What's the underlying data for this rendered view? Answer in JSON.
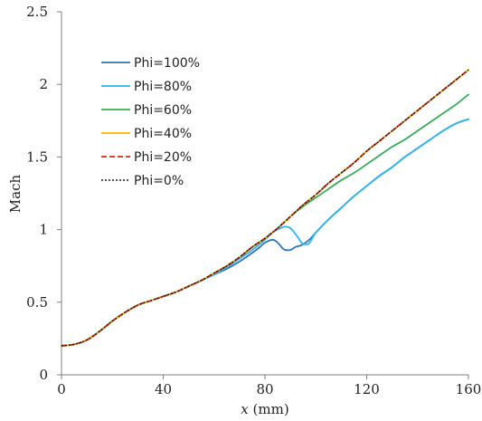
{
  "chart_data": {
    "type": "line",
    "title": "",
    "xlabel_italic": "x",
    "xlabel_unit": " (mm)",
    "ylabel": "Mach",
    "xlim": [
      0,
      160
    ],
    "ylim": [
      0,
      2.5
    ],
    "x_ticks": [
      "0",
      "40",
      "80",
      "120",
      "160"
    ],
    "y_ticks": [
      "0",
      "0.5",
      "1",
      "1.5",
      "2",
      "2.5"
    ],
    "grid": false,
    "legend_position": "top-left",
    "series": [
      {
        "name": "Phi=100%",
        "color": "#2e75b6",
        "dash": "solid",
        "x": [
          0,
          5,
          10,
          15,
          20,
          25,
          30,
          35,
          40,
          45,
          50,
          55,
          60,
          65,
          70,
          75,
          78,
          80,
          83,
          85,
          87,
          88,
          90,
          92,
          94,
          96,
          98,
          100,
          105,
          110,
          115,
          120,
          125,
          130,
          135,
          140,
          145,
          150,
          155,
          160
        ],
        "y": [
          0.2,
          0.21,
          0.24,
          0.3,
          0.37,
          0.43,
          0.48,
          0.51,
          0.54,
          0.57,
          0.61,
          0.65,
          0.69,
          0.73,
          0.78,
          0.84,
          0.88,
          0.91,
          0.93,
          0.91,
          0.87,
          0.86,
          0.86,
          0.88,
          0.89,
          0.91,
          0.94,
          0.98,
          1.07,
          1.15,
          1.23,
          1.3,
          1.37,
          1.43,
          1.5,
          1.56,
          1.62,
          1.68,
          1.73,
          1.76
        ]
      },
      {
        "name": "Phi=80%",
        "color": "#2cb5e8",
        "dash": "solid",
        "x": [
          0,
          5,
          10,
          15,
          20,
          25,
          30,
          35,
          40,
          45,
          50,
          55,
          60,
          65,
          70,
          75,
          80,
          83,
          86,
          88,
          90,
          92,
          94,
          95,
          96,
          97,
          98,
          100,
          105,
          110,
          115,
          120,
          125,
          130,
          135,
          140,
          145,
          150,
          155,
          160
        ],
        "y": [
          0.2,
          0.21,
          0.24,
          0.3,
          0.37,
          0.43,
          0.48,
          0.51,
          0.54,
          0.57,
          0.61,
          0.65,
          0.69,
          0.74,
          0.8,
          0.86,
          0.93,
          0.98,
          1.01,
          1.02,
          1.01,
          0.97,
          0.92,
          0.9,
          0.9,
          0.9,
          0.92,
          0.98,
          1.07,
          1.15,
          1.23,
          1.3,
          1.37,
          1.43,
          1.5,
          1.56,
          1.62,
          1.68,
          1.73,
          1.76
        ]
      },
      {
        "name": "Phi=60%",
        "color": "#3aaa5c",
        "dash": "solid",
        "x": [
          0,
          5,
          10,
          15,
          20,
          25,
          30,
          35,
          40,
          45,
          50,
          55,
          60,
          65,
          70,
          75,
          80,
          85,
          90,
          95,
          100,
          105,
          110,
          115,
          120,
          125,
          130,
          135,
          140,
          145,
          150,
          155,
          160
        ],
        "y": [
          0.2,
          0.21,
          0.24,
          0.3,
          0.37,
          0.43,
          0.48,
          0.51,
          0.54,
          0.57,
          0.61,
          0.65,
          0.7,
          0.75,
          0.81,
          0.88,
          0.94,
          1.01,
          1.09,
          1.16,
          1.22,
          1.28,
          1.34,
          1.39,
          1.45,
          1.51,
          1.57,
          1.62,
          1.68,
          1.74,
          1.8,
          1.86,
          1.93
        ]
      },
      {
        "name": "Phi=40%",
        "color": "#f5b800",
        "dash": "solid",
        "x": [
          0,
          5,
          10,
          15,
          20,
          25,
          30,
          35,
          40,
          45,
          50,
          55,
          60,
          65,
          70,
          75,
          80,
          85,
          90,
          95,
          100,
          105,
          110,
          115,
          120,
          125,
          130,
          135,
          140,
          145,
          150,
          155,
          160
        ],
        "y": [
          0.2,
          0.21,
          0.24,
          0.3,
          0.37,
          0.43,
          0.48,
          0.51,
          0.54,
          0.57,
          0.61,
          0.65,
          0.7,
          0.75,
          0.81,
          0.88,
          0.94,
          1.01,
          1.09,
          1.17,
          1.24,
          1.32,
          1.39,
          1.46,
          1.54,
          1.61,
          1.68,
          1.75,
          1.82,
          1.89,
          1.96,
          2.03,
          2.1
        ]
      },
      {
        "name": "Phi=20%",
        "color": "#d9261c",
        "dash": "dashed",
        "x": [
          0,
          5,
          10,
          15,
          20,
          25,
          30,
          35,
          40,
          45,
          50,
          55,
          60,
          65,
          70,
          75,
          80,
          85,
          90,
          95,
          100,
          105,
          110,
          115,
          120,
          125,
          130,
          135,
          140,
          145,
          150,
          155,
          160
        ],
        "y": [
          0.2,
          0.21,
          0.24,
          0.3,
          0.37,
          0.43,
          0.48,
          0.51,
          0.54,
          0.57,
          0.61,
          0.65,
          0.7,
          0.75,
          0.81,
          0.88,
          0.94,
          1.01,
          1.09,
          1.17,
          1.24,
          1.32,
          1.39,
          1.46,
          1.54,
          1.61,
          1.68,
          1.75,
          1.82,
          1.89,
          1.96,
          2.03,
          2.1
        ]
      },
      {
        "name": "Phi=0%",
        "color": "#1a1a1a",
        "dash": "dotted",
        "x": [
          0,
          5,
          10,
          15,
          20,
          25,
          30,
          35,
          40,
          45,
          50,
          55,
          60,
          65,
          70,
          75,
          80,
          85,
          90,
          95,
          100,
          105,
          110,
          115,
          120,
          125,
          130,
          135,
          140,
          145,
          150,
          155,
          160
        ],
        "y": [
          0.2,
          0.21,
          0.24,
          0.3,
          0.37,
          0.43,
          0.48,
          0.51,
          0.54,
          0.57,
          0.61,
          0.65,
          0.7,
          0.75,
          0.81,
          0.88,
          0.94,
          1.01,
          1.09,
          1.17,
          1.24,
          1.32,
          1.39,
          1.46,
          1.54,
          1.61,
          1.68,
          1.75,
          1.82,
          1.89,
          1.96,
          2.03,
          2.1
        ]
      }
    ]
  }
}
